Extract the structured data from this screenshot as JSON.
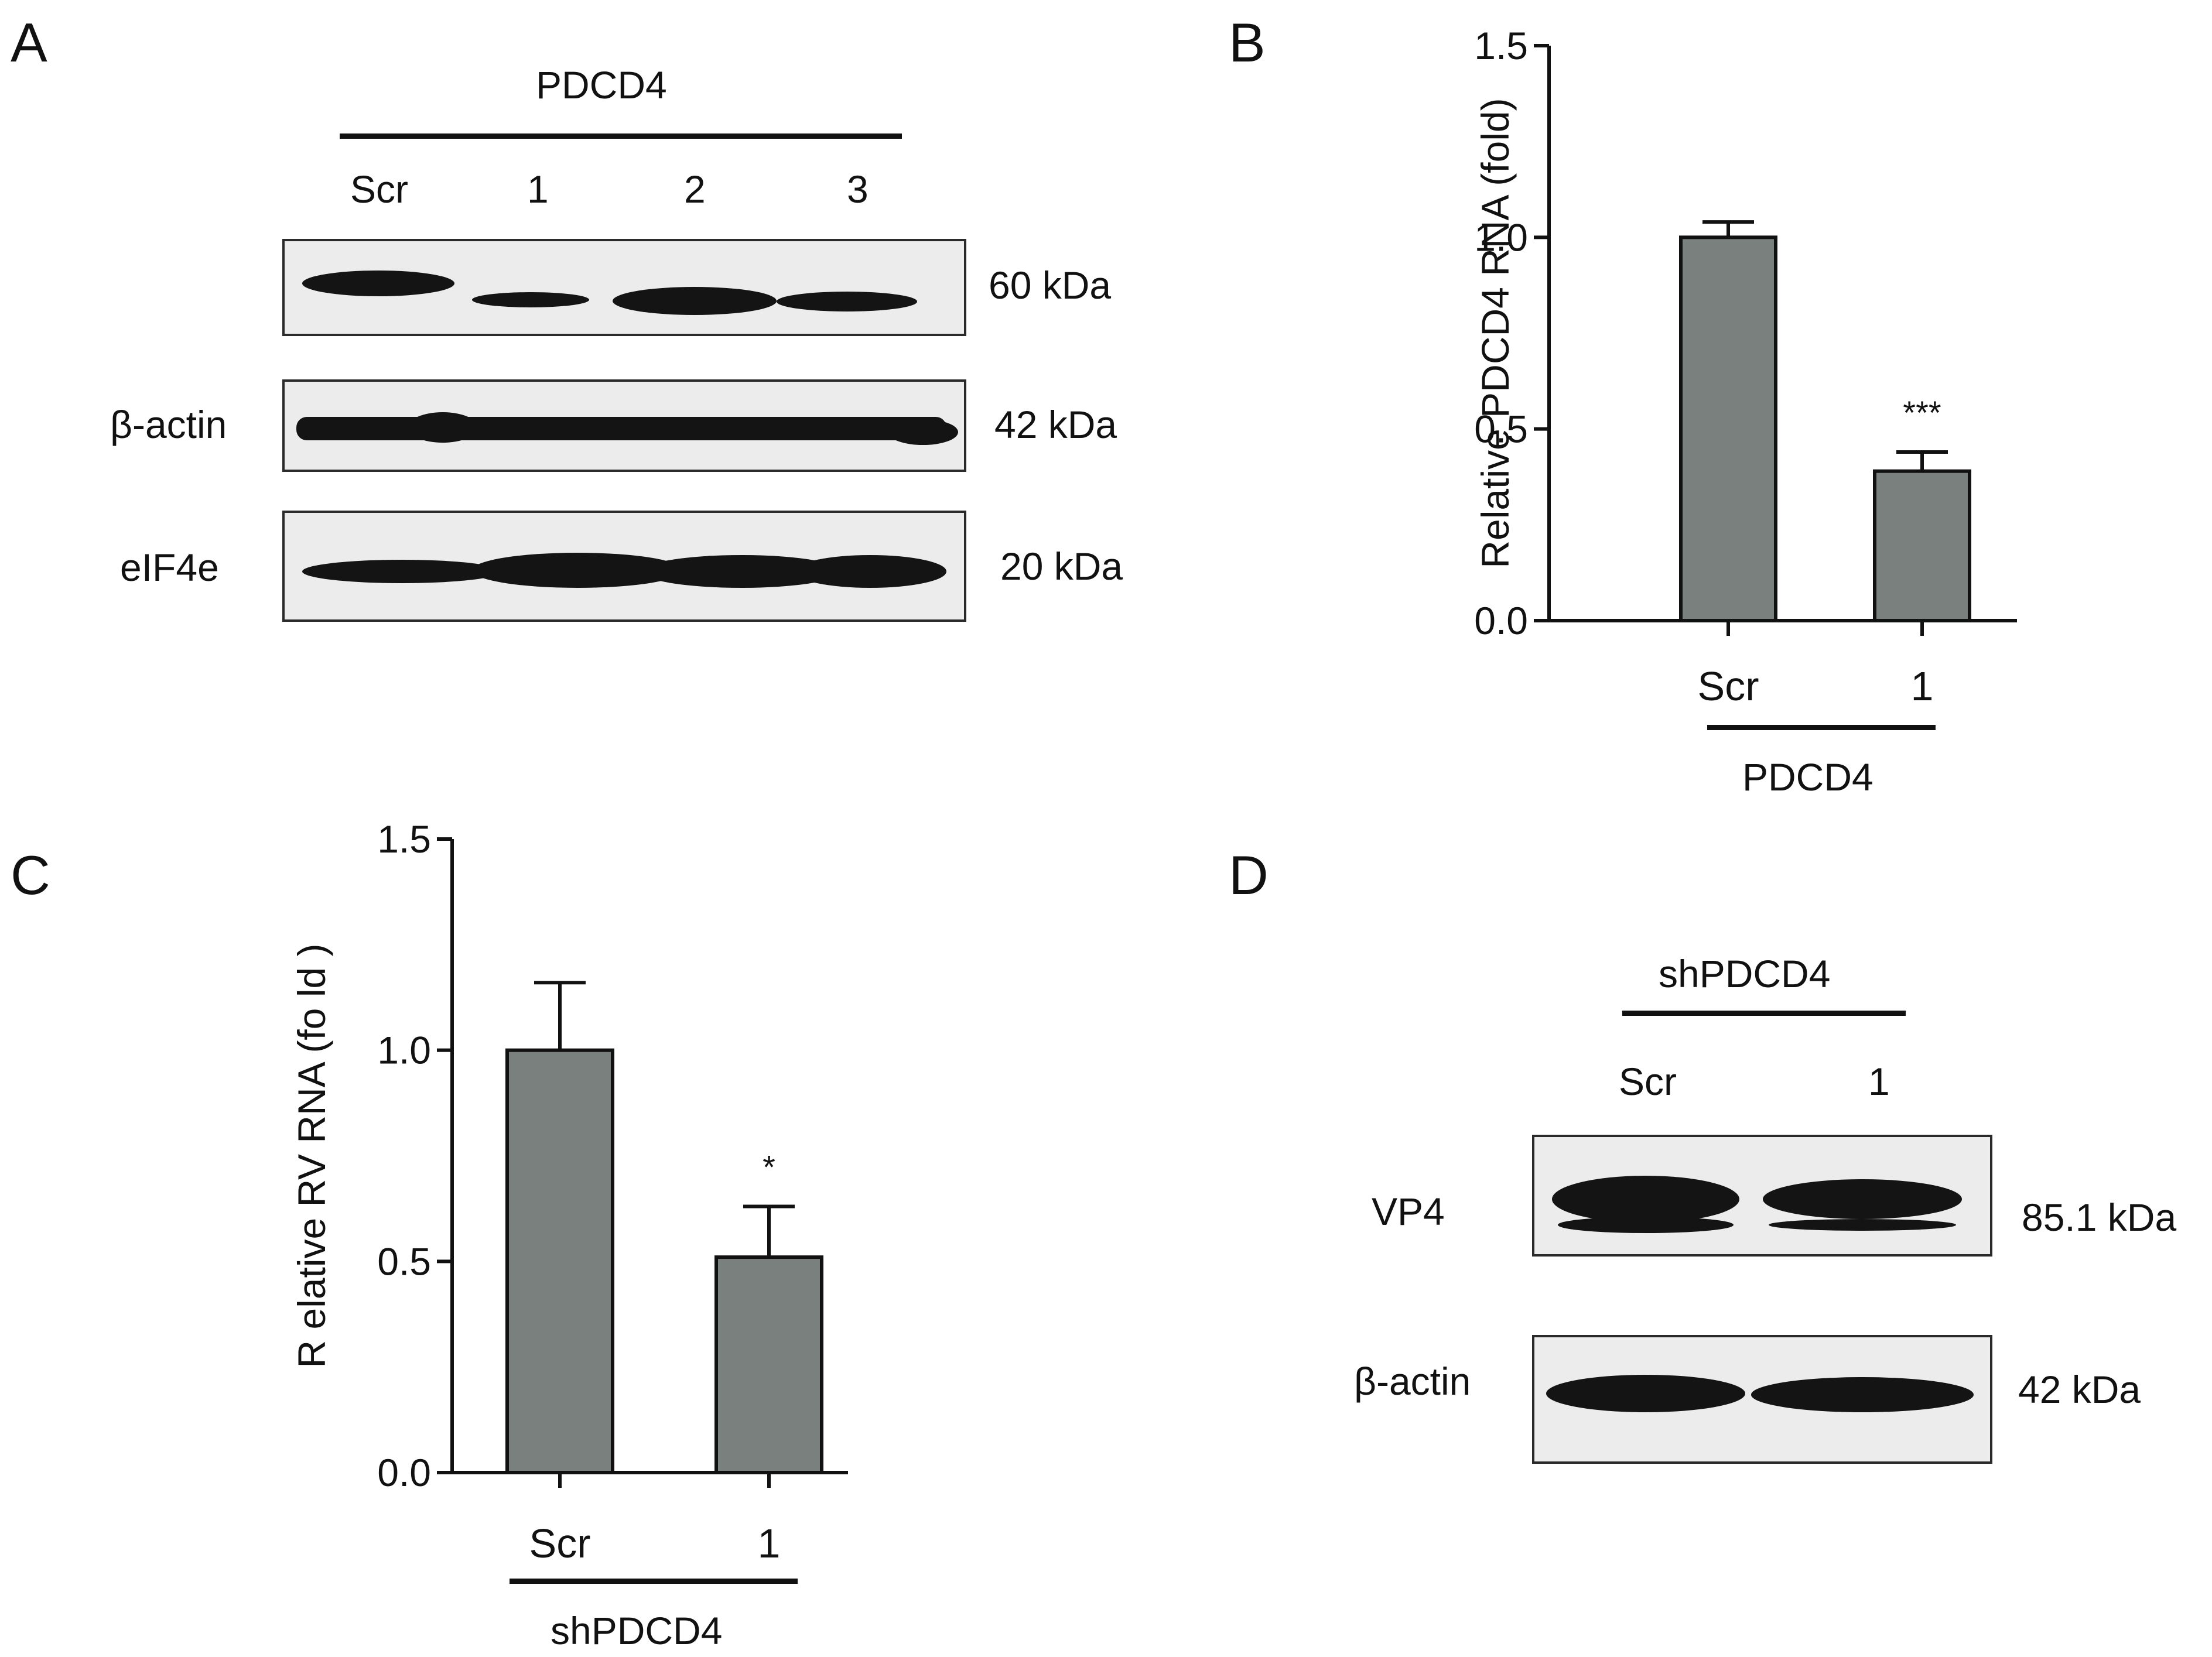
{
  "panels": {
    "A": {
      "letter": "A",
      "group_label": "PDCD4",
      "lanes": [
        "Scr",
        "1",
        "2",
        "3"
      ],
      "blots": [
        {
          "label": "",
          "size": "60 kDa"
        },
        {
          "label": "β-actin",
          "size": "42 kDa"
        },
        {
          "label": "eIF4e",
          "size": "20 kDa"
        }
      ]
    },
    "B": {
      "letter": "B",
      "group_label": "PDCD4"
    },
    "C": {
      "letter": "C",
      "group_label": "shPDCD4"
    },
    "D": {
      "letter": "D",
      "group_label": "shPDCD4",
      "lanes": [
        "Scr",
        "1"
      ],
      "blots": [
        {
          "label": "VP4",
          "size": "85.1 kDa"
        },
        {
          "label": "β-actin",
          "size": "42 kDa"
        }
      ]
    }
  },
  "chart_data": [
    {
      "panel": "B",
      "type": "bar",
      "categories": [
        "Scr",
        "1"
      ],
      "values": [
        1.0,
        0.39
      ],
      "errors": [
        0.04,
        0.05
      ],
      "significance": [
        "",
        "***"
      ],
      "ylabel": "Relative PDCD4 RNA (fold)",
      "ylim": [
        0,
        1.5
      ],
      "yticks": [
        "0.0",
        "0.5",
        "1.0",
        "1.5"
      ],
      "group_label": "PDCD4",
      "fill_color": "#7a807e"
    },
    {
      "panel": "C",
      "type": "bar",
      "categories": [
        "Scr",
        "1"
      ],
      "values": [
        1.0,
        0.51
      ],
      "errors": [
        0.16,
        0.12
      ],
      "significance": [
        "",
        "*"
      ],
      "ylabel": "R elative RV RNA  (fo ld )",
      "ylim": [
        0,
        1.5
      ],
      "yticks": [
        "0.0",
        "0.5",
        "1.0",
        "1.5"
      ],
      "group_label": "shPDCD4",
      "fill_color": "#7a807e"
    }
  ]
}
